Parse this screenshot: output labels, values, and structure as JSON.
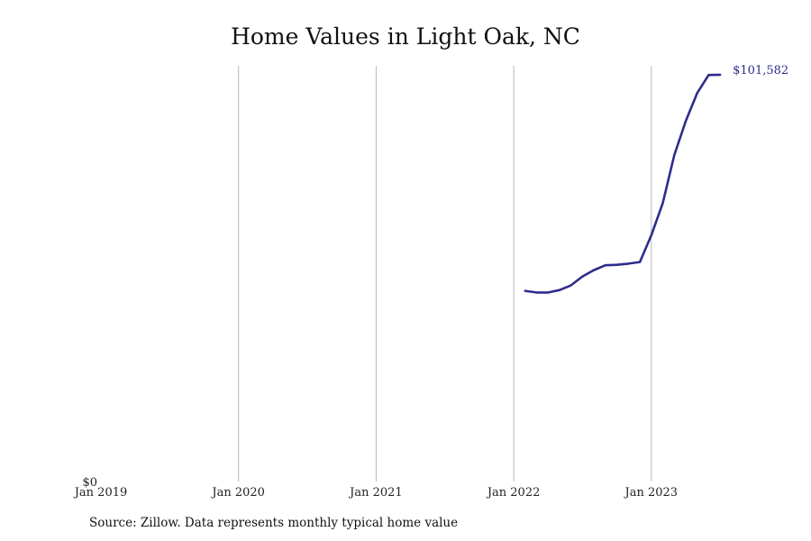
{
  "chart_data": {
    "type": "line",
    "title": "Home Values in Light Oak, NC",
    "xlabel": "",
    "ylabel": "",
    "x_ticks": [
      "Jan 2019",
      "Jan 2020",
      "Jan 2021",
      "Jan 2022",
      "Jan 2023"
    ],
    "y_ticks": [
      {
        "value": 0,
        "label": "$0"
      }
    ],
    "xlim": [
      "2019-01",
      "2023-12"
    ],
    "ylim": [
      0,
      103800
    ],
    "grid": "vertical",
    "series": [
      {
        "color": "#2e2c8c",
        "points": [
          {
            "x": "2022-02",
            "y": 47600
          },
          {
            "x": "2022-03",
            "y": 47200
          },
          {
            "x": "2022-04",
            "y": 47200
          },
          {
            "x": "2022-05",
            "y": 47800
          },
          {
            "x": "2022-06",
            "y": 49000
          },
          {
            "x": "2022-07",
            "y": 51200
          },
          {
            "x": "2022-08",
            "y": 52800
          },
          {
            "x": "2022-09",
            "y": 54000
          },
          {
            "x": "2022-10",
            "y": 54100
          },
          {
            "x": "2022-11",
            "y": 54400
          },
          {
            "x": "2022-12",
            "y": 54800
          },
          {
            "x": "2023-01",
            "y": 61500
          },
          {
            "x": "2023-02",
            "y": 69500
          },
          {
            "x": "2023-03",
            "y": 81500
          },
          {
            "x": "2023-04",
            "y": 90000
          },
          {
            "x": "2023-05",
            "y": 97000
          },
          {
            "x": "2023-06",
            "y": 101500
          },
          {
            "x": "2023-07",
            "y": 101582
          }
        ]
      }
    ],
    "annotations": [
      {
        "text": "$101,582",
        "x": "2023-07",
        "y": 101582
      }
    ]
  },
  "source_note": "Source: Zillow. Data represents monthly typical home value"
}
